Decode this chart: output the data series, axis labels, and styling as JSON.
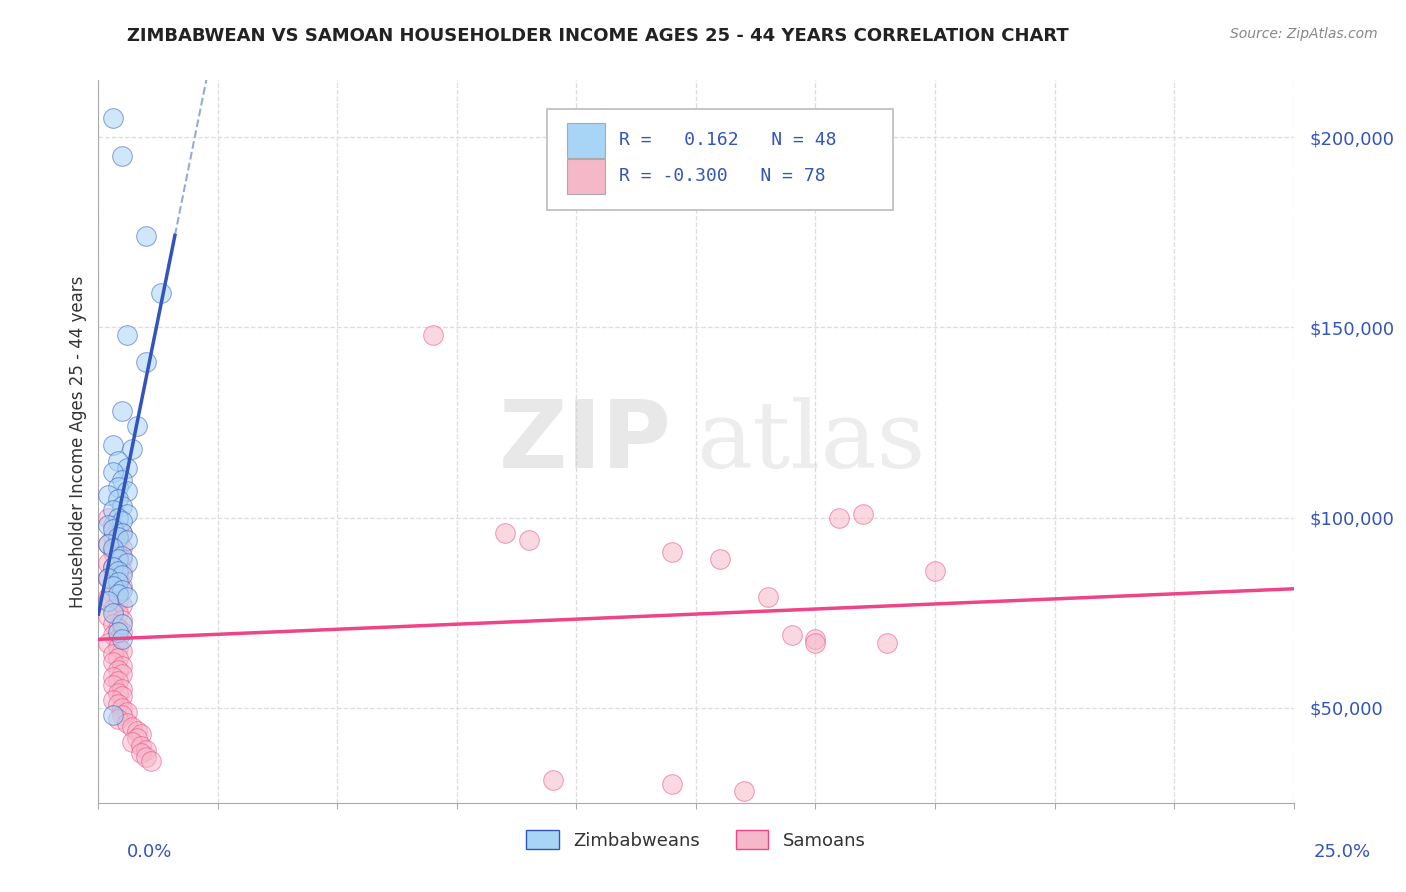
{
  "title": "ZIMBABWEAN VS SAMOAN HOUSEHOLDER INCOME AGES 25 - 44 YEARS CORRELATION CHART",
  "source": "Source: ZipAtlas.com",
  "ylabel": "Householder Income Ages 25 - 44 years",
  "xlim": [
    0.0,
    0.25
  ],
  "ylim": [
    25000,
    215000
  ],
  "yticks": [
    50000,
    100000,
    150000,
    200000
  ],
  "ytick_labels": [
    "$50,000",
    "$100,000",
    "$150,000",
    "$200,000"
  ],
  "color_zim": "#a8d4f5",
  "color_sam": "#f5b8c8",
  "line_color_zim": "#3355bb",
  "line_color_sam": "#ee4488",
  "line_color_dash": "#6688cc",
  "watermark_text": "ZIP",
  "watermark_text2": "atlas",
  "background_color": "#ffffff",
  "grid_color": "#dddddd",
  "title_color": "#222222",
  "label_color": "#3355bb",
  "zim_scatter": [
    [
      0.003,
      205000
    ],
    [
      0.01,
      174000
    ],
    [
      0.013,
      159000
    ],
    [
      0.005,
      195000
    ],
    [
      0.006,
      148000
    ],
    [
      0.01,
      141000
    ],
    [
      0.005,
      128000
    ],
    [
      0.008,
      124000
    ],
    [
      0.003,
      119000
    ],
    [
      0.007,
      118000
    ],
    [
      0.004,
      115000
    ],
    [
      0.006,
      113000
    ],
    [
      0.003,
      112000
    ],
    [
      0.005,
      110000
    ],
    [
      0.004,
      108000
    ],
    [
      0.006,
      107000
    ],
    [
      0.002,
      106000
    ],
    [
      0.004,
      105000
    ],
    [
      0.005,
      103000
    ],
    [
      0.003,
      102000
    ],
    [
      0.006,
      101000
    ],
    [
      0.004,
      100000
    ],
    [
      0.005,
      99000
    ],
    [
      0.002,
      98000
    ],
    [
      0.003,
      97000
    ],
    [
      0.005,
      96000
    ],
    [
      0.004,
      95000
    ],
    [
      0.006,
      94000
    ],
    [
      0.002,
      93000
    ],
    [
      0.003,
      92000
    ],
    [
      0.005,
      90000
    ],
    [
      0.004,
      89000
    ],
    [
      0.006,
      88000
    ],
    [
      0.003,
      87000
    ],
    [
      0.004,
      86000
    ],
    [
      0.005,
      85000
    ],
    [
      0.002,
      84000
    ],
    [
      0.004,
      83000
    ],
    [
      0.003,
      82000
    ],
    [
      0.005,
      81000
    ],
    [
      0.004,
      80000
    ],
    [
      0.006,
      79000
    ],
    [
      0.002,
      78000
    ],
    [
      0.003,
      75000
    ],
    [
      0.005,
      72000
    ],
    [
      0.004,
      70000
    ],
    [
      0.003,
      48000
    ],
    [
      0.005,
      68000
    ]
  ],
  "sam_scatter": [
    [
      0.002,
      100000
    ],
    [
      0.003,
      98000
    ],
    [
      0.004,
      97000
    ],
    [
      0.005,
      96000
    ],
    [
      0.003,
      95000
    ],
    [
      0.004,
      94000
    ],
    [
      0.002,
      93000
    ],
    [
      0.005,
      92000
    ],
    [
      0.003,
      91000
    ],
    [
      0.004,
      90000
    ],
    [
      0.005,
      89000
    ],
    [
      0.002,
      88000
    ],
    [
      0.003,
      87000
    ],
    [
      0.005,
      86000
    ],
    [
      0.004,
      85000
    ],
    [
      0.002,
      84000
    ],
    [
      0.003,
      83000
    ],
    [
      0.005,
      82000
    ],
    [
      0.004,
      81000
    ],
    [
      0.003,
      80000
    ],
    [
      0.002,
      79000
    ],
    [
      0.004,
      78000
    ],
    [
      0.005,
      77000
    ],
    [
      0.003,
      76000
    ],
    [
      0.004,
      75000
    ],
    [
      0.002,
      74000
    ],
    [
      0.005,
      73000
    ],
    [
      0.003,
      72000
    ],
    [
      0.004,
      71000
    ],
    [
      0.005,
      70000
    ],
    [
      0.003,
      69000
    ],
    [
      0.004,
      68000
    ],
    [
      0.002,
      67000
    ],
    [
      0.004,
      66000
    ],
    [
      0.005,
      65000
    ],
    [
      0.003,
      64000
    ],
    [
      0.004,
      63000
    ],
    [
      0.003,
      62000
    ],
    [
      0.005,
      61000
    ],
    [
      0.004,
      60000
    ],
    [
      0.005,
      59000
    ],
    [
      0.003,
      58000
    ],
    [
      0.004,
      57000
    ],
    [
      0.003,
      56000
    ],
    [
      0.005,
      55000
    ],
    [
      0.004,
      54000
    ],
    [
      0.005,
      53000
    ],
    [
      0.003,
      52000
    ],
    [
      0.004,
      51000
    ],
    [
      0.005,
      50000
    ],
    [
      0.006,
      49000
    ],
    [
      0.005,
      48000
    ],
    [
      0.004,
      47000
    ],
    [
      0.006,
      46000
    ],
    [
      0.007,
      45000
    ],
    [
      0.008,
      44000
    ],
    [
      0.009,
      43000
    ],
    [
      0.008,
      42000
    ],
    [
      0.007,
      41000
    ],
    [
      0.009,
      40000
    ],
    [
      0.01,
      39000
    ],
    [
      0.009,
      38000
    ],
    [
      0.01,
      37000
    ],
    [
      0.011,
      36000
    ],
    [
      0.07,
      148000
    ],
    [
      0.155,
      100000
    ],
    [
      0.16,
      101000
    ],
    [
      0.09,
      94000
    ],
    [
      0.13,
      89000
    ],
    [
      0.14,
      79000
    ],
    [
      0.145,
      69000
    ],
    [
      0.15,
      68000
    ],
    [
      0.095,
      31000
    ],
    [
      0.135,
      28000
    ],
    [
      0.12,
      91000
    ],
    [
      0.085,
      96000
    ],
    [
      0.175,
      86000
    ],
    [
      0.15,
      67000
    ],
    [
      0.165,
      67000
    ],
    [
      0.12,
      30000
    ]
  ]
}
